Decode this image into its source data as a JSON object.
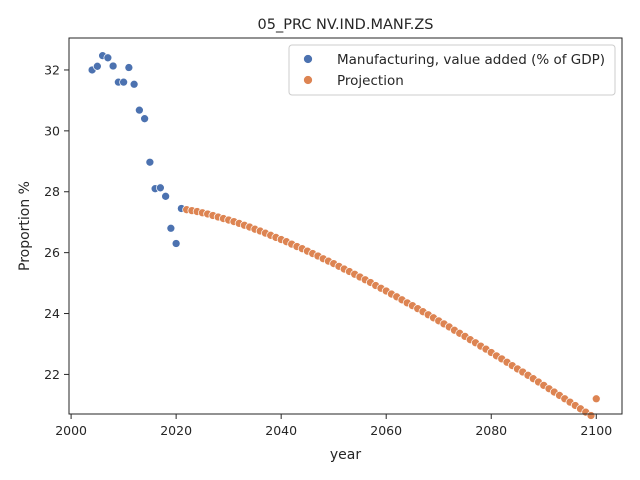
{
  "chart_data": {
    "type": "scatter",
    "title": "05_PRC NV.IND.MANF.ZS",
    "xlabel": "year",
    "ylabel": "Proportion %",
    "xlim": [
      1999.6,
      2104.9
    ],
    "ylim": [
      20.7,
      33.05
    ],
    "x_ticks": [
      2000,
      2020,
      2040,
      2060,
      2080,
      2100
    ],
    "y_ticks": [
      22,
      24,
      26,
      28,
      30,
      32
    ],
    "grid": false,
    "legend_position": "top-right",
    "series": [
      {
        "name": "Manufacturing, value added (% of GDP)",
        "color": "#4c72b0",
        "x": [
          2004,
          2005,
          2006,
          2007,
          2008,
          2009,
          2010,
          2011,
          2012,
          2013,
          2014,
          2015,
          2016,
          2017,
          2018,
          2019,
          2020,
          2021
        ],
        "y": [
          32.0,
          32.12,
          32.47,
          32.4,
          32.13,
          31.6,
          31.6,
          32.08,
          31.53,
          30.68,
          30.4,
          28.97,
          28.1,
          28.13,
          27.85,
          26.8,
          26.3,
          27.45
        ]
      },
      {
        "name": "Projection",
        "color": "#dd8452",
        "x": [
          2022,
          2023,
          2024,
          2025,
          2026,
          2027,
          2028,
          2029,
          2030,
          2031,
          2032,
          2033,
          2034,
          2035,
          2036,
          2037,
          2038,
          2039,
          2040,
          2041,
          2042,
          2043,
          2044,
          2045,
          2046,
          2047,
          2048,
          2049,
          2050,
          2051,
          2052,
          2053,
          2054,
          2055,
          2056,
          2057,
          2058,
          2059,
          2060,
          2061,
          2062,
          2063,
          2064,
          2065,
          2066,
          2067,
          2068,
          2069,
          2070,
          2071,
          2072,
          2073,
          2074,
          2075,
          2076,
          2077,
          2078,
          2079,
          2080,
          2081,
          2082,
          2083,
          2084,
          2085,
          2086,
          2087,
          2088,
          2089,
          2090,
          2091,
          2092,
          2093,
          2094,
          2095,
          2096,
          2097,
          2098,
          2099,
          2100
        ],
        "y": [
          27.41,
          27.38,
          27.35,
          27.31,
          27.27,
          27.22,
          27.17,
          27.12,
          27.07,
          27.02,
          26.96,
          26.9,
          26.84,
          26.77,
          26.71,
          26.64,
          26.57,
          26.5,
          26.43,
          26.36,
          26.28,
          26.2,
          26.13,
          26.05,
          25.97,
          25.89,
          25.8,
          25.72,
          25.64,
          25.55,
          25.46,
          25.38,
          25.29,
          25.2,
          25.11,
          25.02,
          24.92,
          24.83,
          24.74,
          24.64,
          24.55,
          24.45,
          24.35,
          24.26,
          24.16,
          24.06,
          23.96,
          23.86,
          23.76,
          23.66,
          23.56,
          23.45,
          23.35,
          23.25,
          23.14,
          23.04,
          22.93,
          22.83,
          22.72,
          22.61,
          22.51,
          22.4,
          22.29,
          22.18,
          22.08,
          21.97,
          21.86,
          21.75,
          21.64,
          21.53,
          21.42,
          21.31,
          21.2,
          21.09,
          20.98,
          20.87,
          20.76,
          20.65,
          21.2
        ]
      }
    ]
  }
}
